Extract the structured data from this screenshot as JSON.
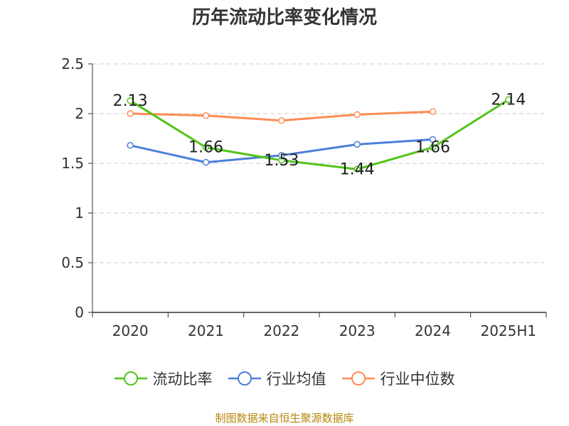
{
  "title": "历年流动比率变化情况",
  "footer": "制图数据来自恒生聚源数据库",
  "chart_data": {
    "type": "line",
    "title": "历年流动比率变化情况",
    "xlabel": "",
    "ylabel": "",
    "categories": [
      "2020",
      "2021",
      "2022",
      "2023",
      "2024",
      "2025H1"
    ],
    "ylim": [
      0,
      2.5
    ],
    "yticks": [
      "0",
      "0.5",
      "1",
      "1.5",
      "2",
      "2.5"
    ],
    "grid": true,
    "legend_position": "bottom",
    "series": [
      {
        "name": "流动比率",
        "color": "#52c41a",
        "values": [
          2.13,
          1.66,
          1.53,
          1.44,
          1.66,
          2.14
        ],
        "labels": [
          "2.13",
          "1.66",
          "1.53",
          "1.44",
          "1.66",
          "2.14"
        ]
      },
      {
        "name": "行业均值",
        "color": "#4a7fdb",
        "values": [
          1.68,
          1.51,
          1.58,
          1.69,
          1.74,
          null
        ]
      },
      {
        "name": "行业中位数",
        "color": "#ff8c55",
        "values": [
          2.0,
          1.98,
          1.93,
          1.99,
          2.02,
          null
        ]
      }
    ]
  }
}
